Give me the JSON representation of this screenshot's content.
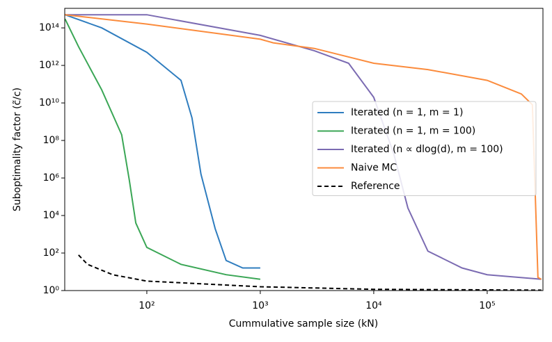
{
  "chart_data": {
    "type": "line",
    "xlabel": "Cummulative sample size (kN)",
    "ylabel": "Suboptimality factor (c̃/c)",
    "xscale": "log",
    "yscale": "log",
    "xlim": [
      18.9,
      310000
    ],
    "ylim": [
      1,
      1100000000000000.0
    ],
    "xticks": [
      {
        "value": 100,
        "label": "10²"
      },
      {
        "value": 1000,
        "label": "10³"
      },
      {
        "value": 10000,
        "label": "10⁴"
      },
      {
        "value": 100000,
        "label": "10⁵"
      }
    ],
    "yticks": [
      {
        "value": 1,
        "label": "10⁰"
      },
      {
        "value": 100,
        "label": "10²"
      },
      {
        "value": 10000,
        "label": "10⁴"
      },
      {
        "value": 1000000,
        "label": "10⁶"
      },
      {
        "value": 100000000,
        "label": "10⁸"
      },
      {
        "value": 10000000000,
        "label": "10¹⁰"
      },
      {
        "value": 1000000000000,
        "label": "10¹²"
      },
      {
        "value": 100000000000000,
        "label": "10¹⁴"
      }
    ],
    "legend": "center right",
    "series": [
      {
        "name": "Iterated (n = 1, m = 1)",
        "color": "#2f7dbf",
        "style": "solid",
        "x": [
          19,
          40,
          100,
          200,
          250,
          300,
          400,
          500,
          700,
          1000
        ],
        "values": [
          500000000000000.0,
          100000000000000.0,
          5000000000000.0,
          160000000000.0,
          1600000000.0,
          1600000.0,
          2000,
          40,
          16,
          16
        ]
      },
      {
        "name": "Iterated (n = 1, m = 100)",
        "color": "#3aa655",
        "style": "solid",
        "x": [
          19,
          25,
          40,
          60,
          70,
          80,
          100,
          200,
          500,
          1000
        ],
        "values": [
          300000000000000.0,
          10000000000000.0,
          50000000000.0,
          200000000.0,
          800000.0,
          4000,
          200,
          25,
          7,
          4
        ]
      },
      {
        "name": "Iterated (n ∝ dlog(d), m = 100)",
        "color": "#7b6bb2",
        "style": "solid",
        "x": [
          19,
          100,
          1000,
          3000,
          6000,
          10000,
          15000,
          20000,
          30000,
          60000,
          100000,
          300000
        ],
        "values": [
          500000000000000.0,
          500000000000000.0,
          40000000000000.0,
          6000000000000.0,
          1300000000000.0,
          20000000000.0,
          20000000.0,
          25000,
          126,
          16,
          7,
          4
        ]
      },
      {
        "name": "Naive MC",
        "color": "#fb8b3c",
        "style": "solid",
        "x": [
          19,
          100,
          1000,
          1300,
          3000,
          10000,
          30000,
          100000,
          200000,
          250000,
          280000,
          300000
        ],
        "values": [
          500000000000000.0,
          160000000000000.0,
          25000000000000.0,
          16000000000000.0,
          8000000000000.0,
          1300000000000.0,
          600000000000.0,
          160000000000.0,
          30000000000.0,
          8000000000.0,
          5,
          4
        ]
      },
      {
        "name": "Reference",
        "color": "#000000",
        "style": "dashed",
        "x": [
          25,
          30,
          50,
          100,
          1000,
          10000,
          300000
        ],
        "values": [
          79,
          25,
          7,
          3.2,
          1.6,
          1.17,
          1.05
        ]
      }
    ]
  }
}
